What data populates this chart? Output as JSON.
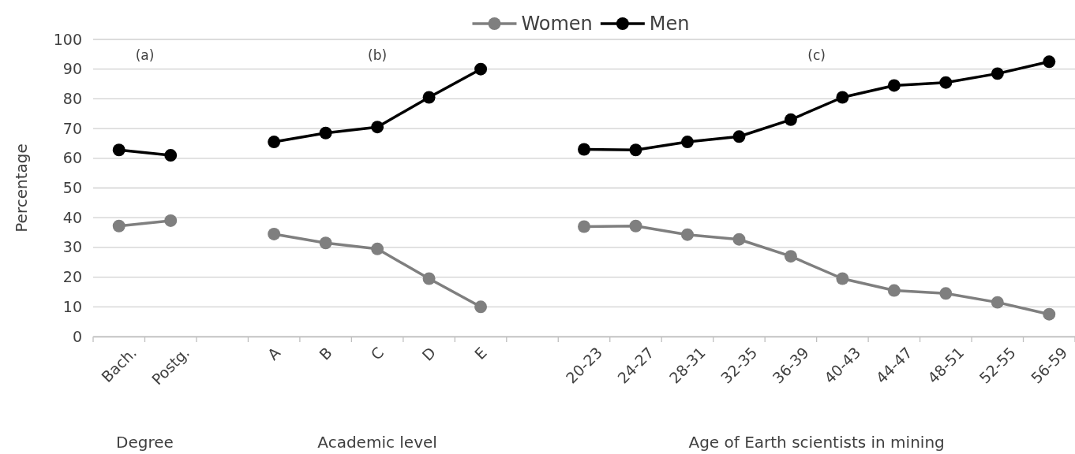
{
  "chart_data": {
    "type": "line",
    "ylabel": "Percentage",
    "categories": [
      "Bach.",
      "Postg.",
      null,
      "A",
      "B",
      "C",
      "D",
      "E",
      null,
      "20-23",
      "24-27",
      "28-31",
      "32-35",
      "36-39",
      "40-43",
      "44-47",
      "48-51",
      "52-55",
      "56-59"
    ],
    "series": [
      {
        "name": "Women",
        "color": "#7f7f7f",
        "values": [
          37.2,
          39,
          null,
          34.5,
          31.5,
          29.5,
          19.5,
          10,
          null,
          37,
          37.2,
          34.3,
          32.7,
          27,
          19.5,
          15.5,
          14.5,
          11.5,
          7.5
        ]
      },
      {
        "name": "Men",
        "color": "#000000",
        "values": [
          62.8,
          61,
          null,
          65.5,
          68.5,
          70.5,
          80.5,
          90,
          null,
          63,
          62.8,
          65.5,
          67.3,
          73,
          80.5,
          84.5,
          85.5,
          88.5,
          92.5
        ]
      }
    ],
    "ylim": [
      0,
      100
    ],
    "yticks": [
      0,
      10,
      20,
      30,
      40,
      50,
      60,
      70,
      80,
      90,
      100
    ],
    "grid": "y",
    "legend": "top",
    "marker": "circle",
    "line_style": "solid",
    "annotations": [
      "(a)",
      "(b)",
      "(c)",
      "Degree",
      "Academic level",
      "Age of Earth scientists in mining"
    ]
  }
}
